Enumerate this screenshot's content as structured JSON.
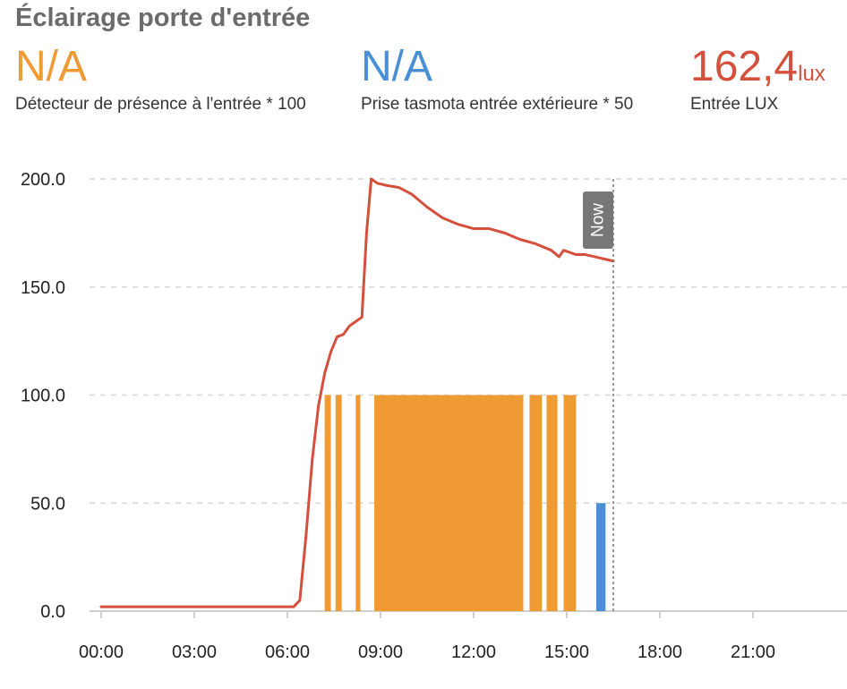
{
  "card": {
    "title": "Éclairage porte d'entrée"
  },
  "metrics": [
    {
      "value": "N/A",
      "unit": "",
      "label": "Détecteur de présence à l'entrée * 100",
      "color": "#f09a34"
    },
    {
      "value": "N/A",
      "unit": "",
      "label": "Prise tasmota entrée extérieure * 50",
      "color": "#4a8fd6"
    },
    {
      "value": "162,4",
      "unit": "lux",
      "label": "Entrée LUX",
      "color": "#d4503c"
    }
  ],
  "chart_data": {
    "type": "line",
    "xlim": [
      0,
      24
    ],
    "ylim": [
      0,
      200
    ],
    "x_ticks": [
      "00:00",
      "03:00",
      "06:00",
      "09:00",
      "12:00",
      "15:00",
      "18:00",
      "21:00"
    ],
    "x_tick_values": [
      0,
      3,
      6,
      9,
      12,
      15,
      18,
      21
    ],
    "y_ticks": [
      "0.0",
      "50.0",
      "100.0",
      "150.0",
      "200.0"
    ],
    "y_tick_values": [
      0,
      50,
      100,
      150,
      200
    ],
    "grid": true,
    "now_label": "Now",
    "now_x": 16.5,
    "lux_series": {
      "color": "#d4503c",
      "x": [
        0,
        6.2,
        6.4,
        6.6,
        6.8,
        7.0,
        7.2,
        7.4,
        7.6,
        7.8,
        8.0,
        8.2,
        8.4,
        8.55,
        8.7,
        8.9,
        9.2,
        9.6,
        10.0,
        10.5,
        11.0,
        11.5,
        12.0,
        12.5,
        13.0,
        13.5,
        14.0,
        14.5,
        14.75,
        14.9,
        15.1,
        15.3,
        15.6,
        15.9,
        16.2,
        16.5
      ],
      "y": [
        2,
        2,
        5,
        35,
        70,
        95,
        110,
        120,
        127,
        128,
        132,
        134,
        136,
        175,
        200,
        198,
        197,
        196,
        193,
        187,
        182,
        179,
        177,
        177,
        175,
        172,
        170,
        167,
        164,
        167,
        166,
        165,
        165,
        164,
        163,
        162
      ]
    },
    "presence_series": {
      "color": "#f09a34",
      "value": 100,
      "intervals": [
        [
          7.2,
          7.4
        ],
        [
          7.55,
          7.75
        ],
        [
          8.2,
          8.35
        ],
        [
          8.8,
          13.6
        ],
        [
          13.8,
          14.2
        ],
        [
          14.35,
          14.7
        ],
        [
          14.9,
          15.3
        ]
      ]
    },
    "tasmota_series": {
      "color": "#4a8fd6",
      "value": 50,
      "intervals": [
        [
          15.95,
          16.25
        ]
      ]
    }
  }
}
